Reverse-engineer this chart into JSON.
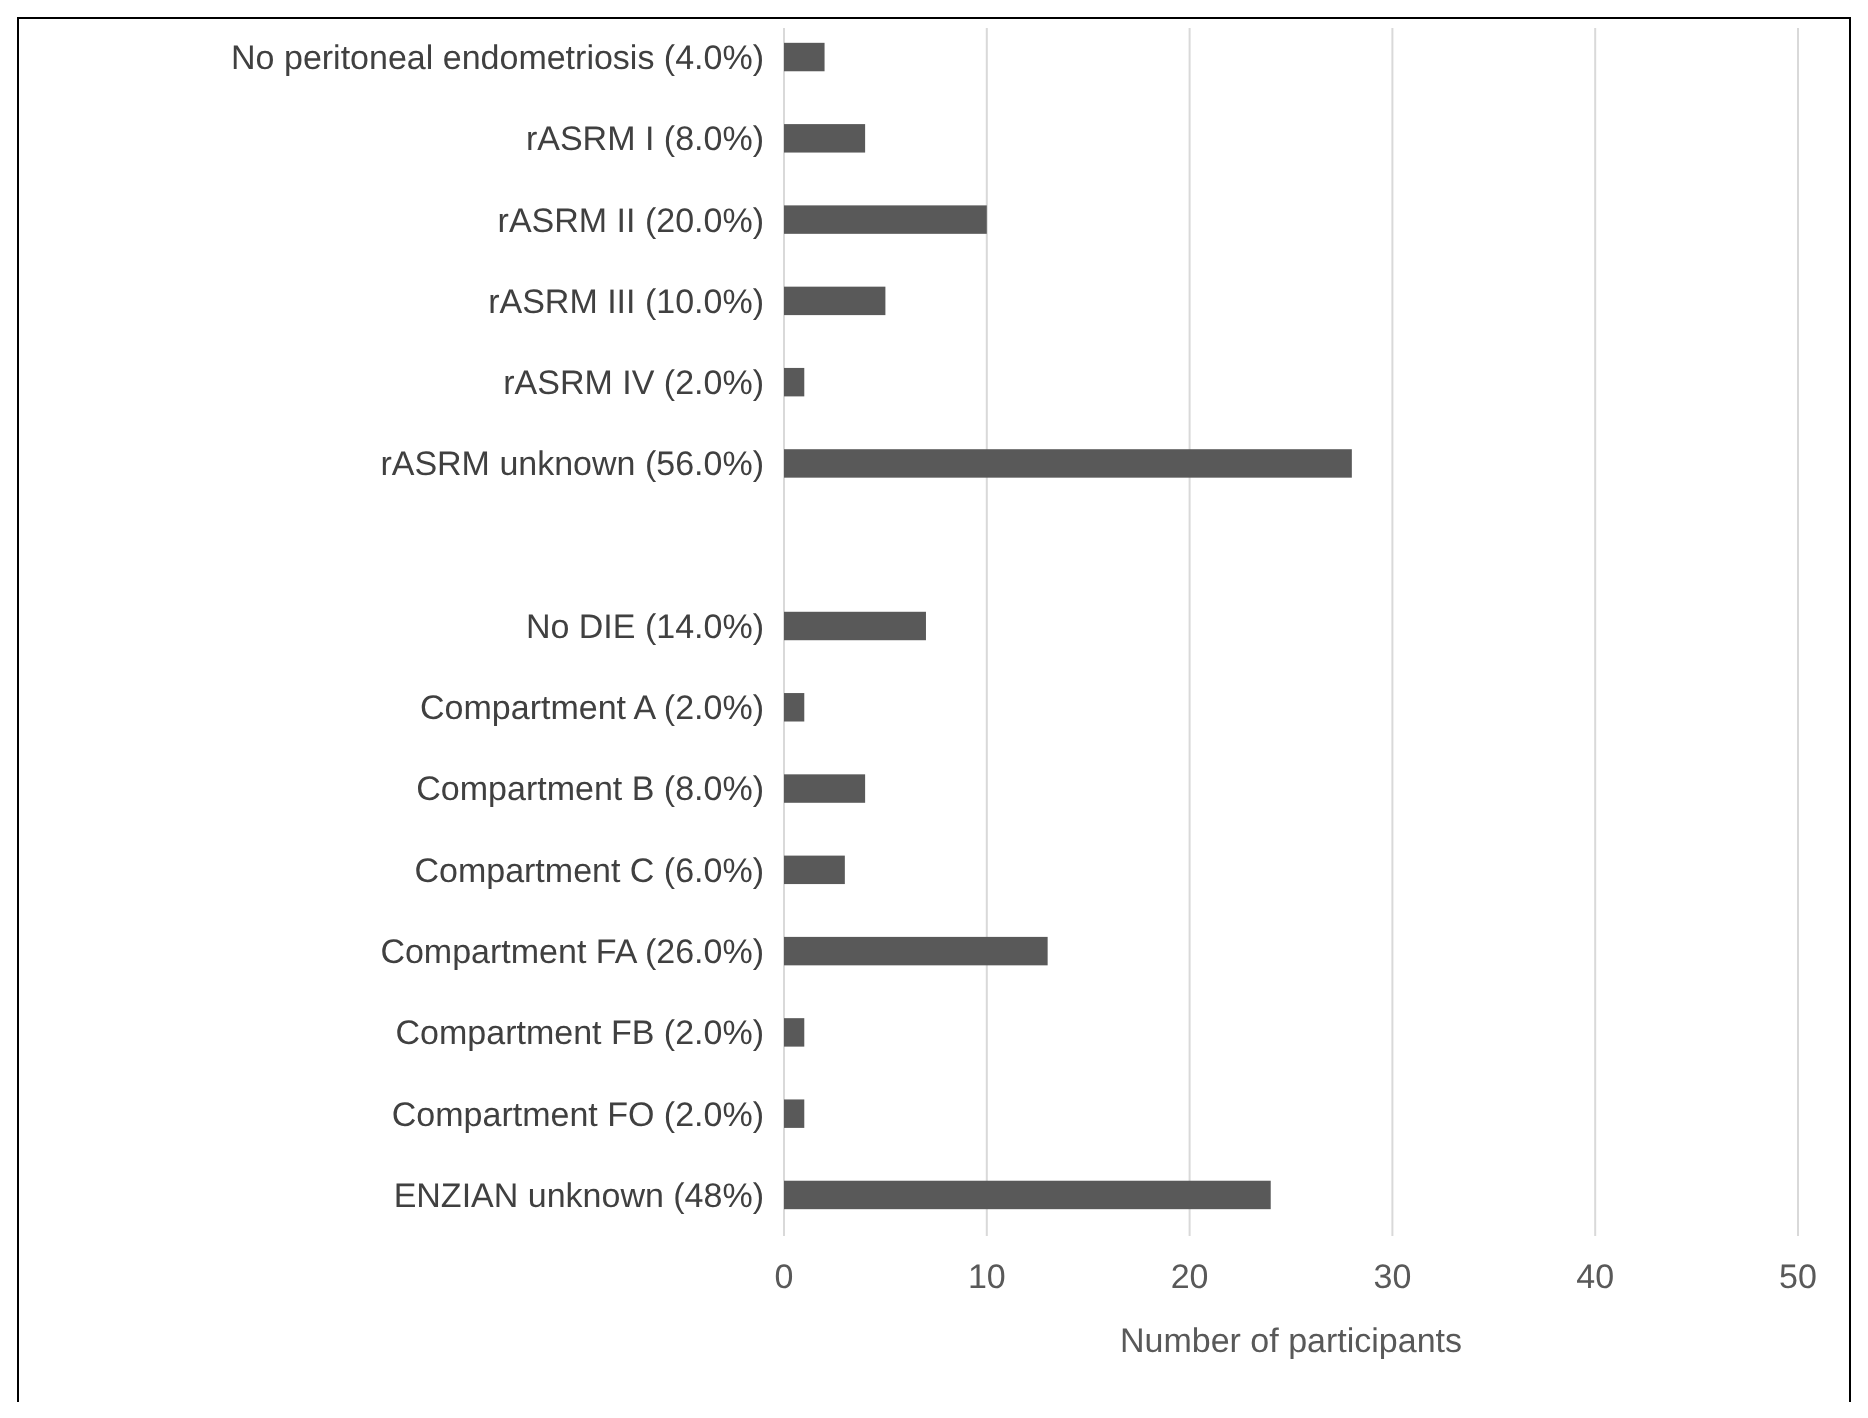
{
  "chart_data": {
    "type": "bar",
    "orientation": "horizontal",
    "xlabel": "Number of participants",
    "categories": [
      "No peritoneal endometriosis (4.0%)",
      "rASRM I (8.0%)",
      "rASRM II (20.0%)",
      "rASRM III (10.0%)",
      "rASRM IV (2.0%)",
      "rASRM unknown (56.0%)",
      null,
      "No DIE (14.0%)",
      "Compartment A (2.0%)",
      "Compartment B (8.0%)",
      "Compartment C (6.0%)",
      "Compartment FA (26.0%)",
      "Compartment FB (2.0%)",
      "Compartment FO (2.0%)",
      "ENZIAN unknown (48%)"
    ],
    "values": [
      2,
      4,
      10,
      5,
      1,
      28,
      null,
      7,
      1,
      4,
      3,
      13,
      1,
      1,
      24
    ],
    "color": "#595959",
    "xlim": [
      0,
      50
    ],
    "xticks": [
      0,
      10,
      20,
      30,
      40,
      50
    ],
    "grid": "x"
  }
}
